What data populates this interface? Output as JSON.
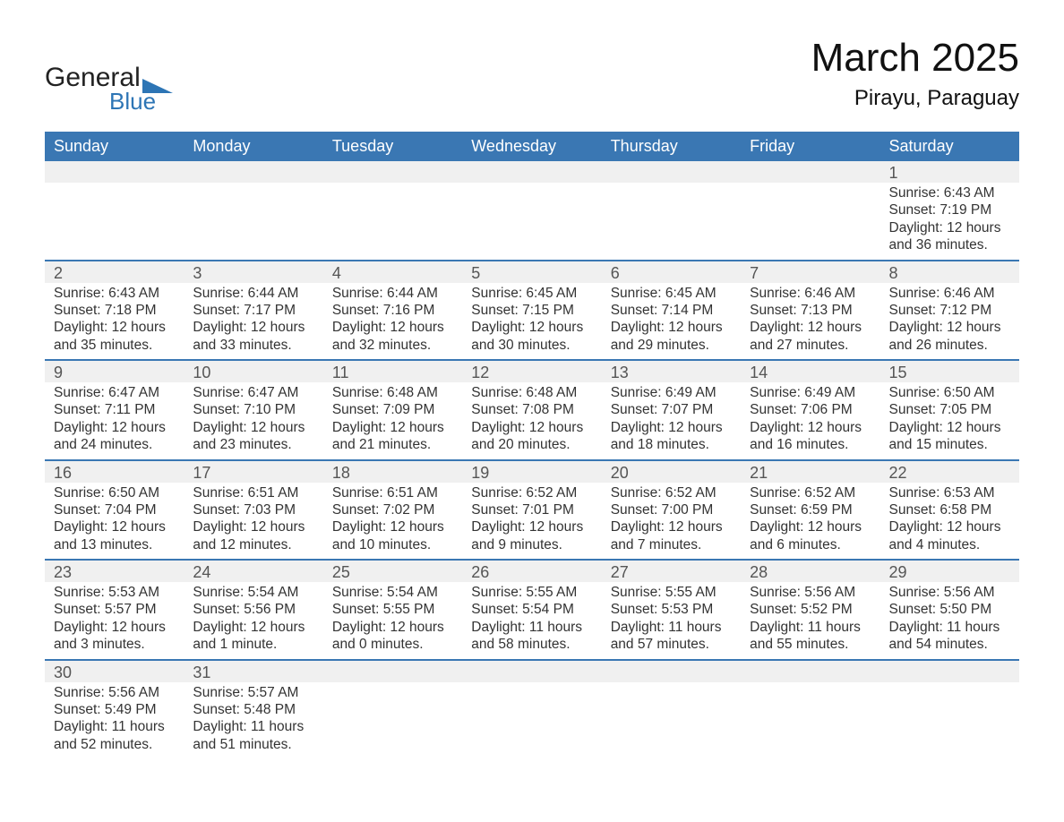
{
  "colors": {
    "header_blue": "#3a77b3",
    "band_gray": "#f0f0f0",
    "divider_blue": "#3a77b3",
    "text": "#333333",
    "logo_dark": "#222222",
    "logo_blue": "#2d75b5",
    "background": "#ffffff"
  },
  "logo": {
    "text1": "General",
    "text2": "Blue"
  },
  "header": {
    "title": "March 2025",
    "subtitle": "Pirayu, Paraguay"
  },
  "calendar": {
    "days_of_week": [
      "Sunday",
      "Monday",
      "Tuesday",
      "Wednesday",
      "Thursday",
      "Friday",
      "Saturday"
    ],
    "weeks": [
      [
        null,
        null,
        null,
        null,
        null,
        null,
        {
          "n": "1",
          "sunrise": "Sunrise: 6:43 AM",
          "sunset": "Sunset: 7:19 PM",
          "daylight": "Daylight: 12 hours and 36 minutes."
        }
      ],
      [
        {
          "n": "2",
          "sunrise": "Sunrise: 6:43 AM",
          "sunset": "Sunset: 7:18 PM",
          "daylight": "Daylight: 12 hours and 35 minutes."
        },
        {
          "n": "3",
          "sunrise": "Sunrise: 6:44 AM",
          "sunset": "Sunset: 7:17 PM",
          "daylight": "Daylight: 12 hours and 33 minutes."
        },
        {
          "n": "4",
          "sunrise": "Sunrise: 6:44 AM",
          "sunset": "Sunset: 7:16 PM",
          "daylight": "Daylight: 12 hours and 32 minutes."
        },
        {
          "n": "5",
          "sunrise": "Sunrise: 6:45 AM",
          "sunset": "Sunset: 7:15 PM",
          "daylight": "Daylight: 12 hours and 30 minutes."
        },
        {
          "n": "6",
          "sunrise": "Sunrise: 6:45 AM",
          "sunset": "Sunset: 7:14 PM",
          "daylight": "Daylight: 12 hours and 29 minutes."
        },
        {
          "n": "7",
          "sunrise": "Sunrise: 6:46 AM",
          "sunset": "Sunset: 7:13 PM",
          "daylight": "Daylight: 12 hours and 27 minutes."
        },
        {
          "n": "8",
          "sunrise": "Sunrise: 6:46 AM",
          "sunset": "Sunset: 7:12 PM",
          "daylight": "Daylight: 12 hours and 26 minutes."
        }
      ],
      [
        {
          "n": "9",
          "sunrise": "Sunrise: 6:47 AM",
          "sunset": "Sunset: 7:11 PM",
          "daylight": "Daylight: 12 hours and 24 minutes."
        },
        {
          "n": "10",
          "sunrise": "Sunrise: 6:47 AM",
          "sunset": "Sunset: 7:10 PM",
          "daylight": "Daylight: 12 hours and 23 minutes."
        },
        {
          "n": "11",
          "sunrise": "Sunrise: 6:48 AM",
          "sunset": "Sunset: 7:09 PM",
          "daylight": "Daylight: 12 hours and 21 minutes."
        },
        {
          "n": "12",
          "sunrise": "Sunrise: 6:48 AM",
          "sunset": "Sunset: 7:08 PM",
          "daylight": "Daylight: 12 hours and 20 minutes."
        },
        {
          "n": "13",
          "sunrise": "Sunrise: 6:49 AM",
          "sunset": "Sunset: 7:07 PM",
          "daylight": "Daylight: 12 hours and 18 minutes."
        },
        {
          "n": "14",
          "sunrise": "Sunrise: 6:49 AM",
          "sunset": "Sunset: 7:06 PM",
          "daylight": "Daylight: 12 hours and 16 minutes."
        },
        {
          "n": "15",
          "sunrise": "Sunrise: 6:50 AM",
          "sunset": "Sunset: 7:05 PM",
          "daylight": "Daylight: 12 hours and 15 minutes."
        }
      ],
      [
        {
          "n": "16",
          "sunrise": "Sunrise: 6:50 AM",
          "sunset": "Sunset: 7:04 PM",
          "daylight": "Daylight: 12 hours and 13 minutes."
        },
        {
          "n": "17",
          "sunrise": "Sunrise: 6:51 AM",
          "sunset": "Sunset: 7:03 PM",
          "daylight": "Daylight: 12 hours and 12 minutes."
        },
        {
          "n": "18",
          "sunrise": "Sunrise: 6:51 AM",
          "sunset": "Sunset: 7:02 PM",
          "daylight": "Daylight: 12 hours and 10 minutes."
        },
        {
          "n": "19",
          "sunrise": "Sunrise: 6:52 AM",
          "sunset": "Sunset: 7:01 PM",
          "daylight": "Daylight: 12 hours and 9 minutes."
        },
        {
          "n": "20",
          "sunrise": "Sunrise: 6:52 AM",
          "sunset": "Sunset: 7:00 PM",
          "daylight": "Daylight: 12 hours and 7 minutes."
        },
        {
          "n": "21",
          "sunrise": "Sunrise: 6:52 AM",
          "sunset": "Sunset: 6:59 PM",
          "daylight": "Daylight: 12 hours and 6 minutes."
        },
        {
          "n": "22",
          "sunrise": "Sunrise: 6:53 AM",
          "sunset": "Sunset: 6:58 PM",
          "daylight": "Daylight: 12 hours and 4 minutes."
        }
      ],
      [
        {
          "n": "23",
          "sunrise": "Sunrise: 5:53 AM",
          "sunset": "Sunset: 5:57 PM",
          "daylight": "Daylight: 12 hours and 3 minutes."
        },
        {
          "n": "24",
          "sunrise": "Sunrise: 5:54 AM",
          "sunset": "Sunset: 5:56 PM",
          "daylight": "Daylight: 12 hours and 1 minute."
        },
        {
          "n": "25",
          "sunrise": "Sunrise: 5:54 AM",
          "sunset": "Sunset: 5:55 PM",
          "daylight": "Daylight: 12 hours and 0 minutes."
        },
        {
          "n": "26",
          "sunrise": "Sunrise: 5:55 AM",
          "sunset": "Sunset: 5:54 PM",
          "daylight": "Daylight: 11 hours and 58 minutes."
        },
        {
          "n": "27",
          "sunrise": "Sunrise: 5:55 AM",
          "sunset": "Sunset: 5:53 PM",
          "daylight": "Daylight: 11 hours and 57 minutes."
        },
        {
          "n": "28",
          "sunrise": "Sunrise: 5:56 AM",
          "sunset": "Sunset: 5:52 PM",
          "daylight": "Daylight: 11 hours and 55 minutes."
        },
        {
          "n": "29",
          "sunrise": "Sunrise: 5:56 AM",
          "sunset": "Sunset: 5:50 PM",
          "daylight": "Daylight: 11 hours and 54 minutes."
        }
      ],
      [
        {
          "n": "30",
          "sunrise": "Sunrise: 5:56 AM",
          "sunset": "Sunset: 5:49 PM",
          "daylight": "Daylight: 11 hours and 52 minutes."
        },
        {
          "n": "31",
          "sunrise": "Sunrise: 5:57 AM",
          "sunset": "Sunset: 5:48 PM",
          "daylight": "Daylight: 11 hours and 51 minutes."
        },
        null,
        null,
        null,
        null,
        null
      ]
    ]
  }
}
